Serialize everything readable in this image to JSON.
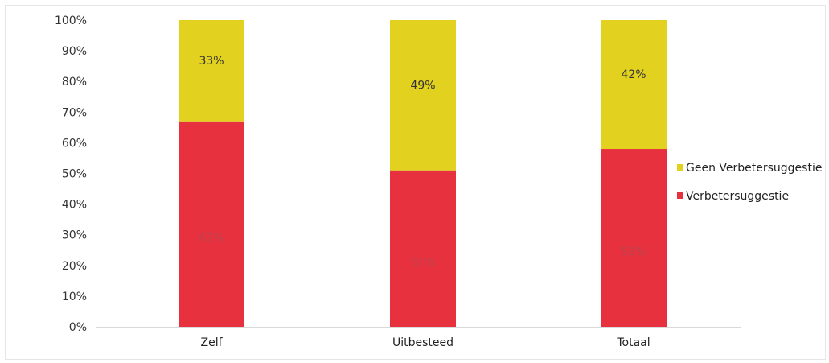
{
  "chart_data": {
    "type": "bar",
    "stacked": true,
    "percent_stacked": true,
    "categories": [
      "Zelf",
      "Uitbesteed",
      "Totaal"
    ],
    "series": [
      {
        "name": "Verbetersuggestie",
        "values": [
          67,
          51,
          58
        ],
        "labels": [
          "67%",
          "51%",
          "58%"
        ],
        "color": "#e8313e"
      },
      {
        "name": "Geen Verbetersuggestie",
        "values": [
          33,
          49,
          42
        ],
        "labels": [
          "33%",
          "49%",
          "42%"
        ],
        "color": "#e2d11f"
      }
    ],
    "yticks": [
      "0%",
      "10%",
      "20%",
      "30%",
      "40%",
      "50%",
      "60%",
      "70%",
      "80%",
      "90%",
      "100%"
    ],
    "ylim": [
      0,
      100
    ],
    "grid": false,
    "legend": {
      "position": "right",
      "entries": [
        "Geen Verbetersuggestie",
        "Verbetersuggestie"
      ]
    },
    "title": "",
    "xlabel": "",
    "ylabel": ""
  }
}
